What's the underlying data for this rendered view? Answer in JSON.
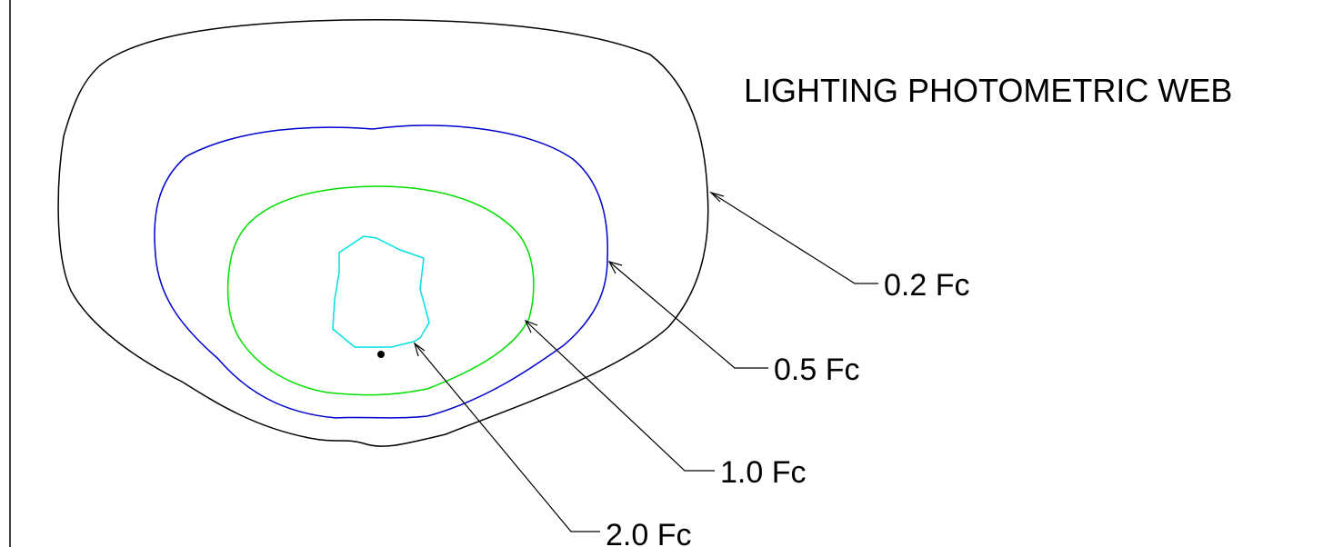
{
  "title": "LIGHTING PHOTOMETRIC WEB",
  "contours": [
    {
      "label": "0.2 Fc",
      "color": "#000000"
    },
    {
      "label": "0.5 Fc",
      "color": "#0000cc"
    },
    {
      "label": "1.0 Fc",
      "color": "#00dd00"
    },
    {
      "label": "2.0 Fc",
      "color": "#00e0e0"
    }
  ],
  "fixture_color": "#000000",
  "leader_color": "#000000"
}
